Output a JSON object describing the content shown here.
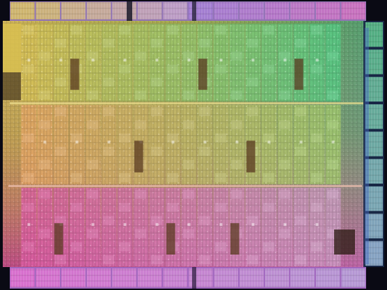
{
  "image": {
    "subject": "processor-die-micrograph",
    "palette": {
      "background": "#0a0a14",
      "top_left": "#c8c24a",
      "top_right": "#4fd07a",
      "middle": "#d7b25a",
      "bottom_left": "#e0509a",
      "bottom_right": "#c8a8d0",
      "io_strip_top": "#a080c8",
      "io_strip_bottom": "#b070d0",
      "cache_blocks": "#5a3a20",
      "right_edge_io": "#4a6ac0"
    },
    "structure": {
      "top_io_blocks": 14,
      "core_rows": 3,
      "columns_per_row": 20,
      "bottom_io_blocks": 14,
      "right_io_blocks": 9
    }
  }
}
